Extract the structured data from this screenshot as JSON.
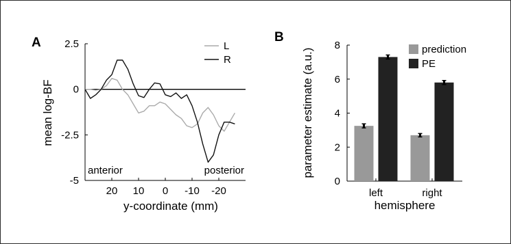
{
  "chart_data": [
    {
      "panel": "A",
      "type": "line",
      "xlabel": "y-coordinate (mm)",
      "ylabel": "mean log-BF",
      "xlim": [
        30,
        -30
      ],
      "ylim": [
        -5,
        2.5
      ],
      "x_ticks": [
        "20",
        "10",
        "0",
        "-10",
        "-20"
      ],
      "y_ticks": [
        "2.5",
        "0",
        "-2.5",
        "-5"
      ],
      "legend_position": "top-right",
      "colors": {
        "L": "#aaaaaa",
        "R": "#111111"
      },
      "annotations": {
        "left": "anterior",
        "right": "posterior"
      },
      "x": [
        30,
        28,
        26,
        24,
        22,
        20,
        18,
        16,
        14,
        12,
        10,
        8,
        6,
        4,
        2,
        0,
        -2,
        -4,
        -6,
        -8,
        -10,
        -12,
        -14,
        -16,
        -18,
        -20,
        -22,
        -24,
        -26
      ],
      "series": [
        {
          "name": "L",
          "values": [
            0,
            0,
            -0.05,
            0,
            0.2,
            0.6,
            0.5,
            0,
            -0.3,
            -0.8,
            -1.3,
            -1.2,
            -0.9,
            -0.9,
            -0.7,
            -0.8,
            -1.1,
            -1.4,
            -1.6,
            -2.0,
            -2.1,
            -1.9,
            -1.3,
            -1.0,
            -1.4,
            -2.0,
            -2.3,
            -1.8,
            -1.3
          ]
        },
        {
          "name": "R",
          "values": [
            0,
            -0.5,
            -0.3,
            0,
            0.5,
            0.8,
            1.6,
            1.6,
            1.1,
            0.3,
            -0.35,
            -0.45,
            0,
            0.35,
            0.3,
            -0.3,
            -0.4,
            -0.2,
            -0.5,
            -0.3,
            -0.9,
            -1.8,
            -3.0,
            -4.0,
            -3.6,
            -2.5,
            -1.8,
            -1.8,
            -1.9
          ]
        }
      ]
    },
    {
      "panel": "B",
      "type": "bar",
      "xlabel": "hemisphere",
      "ylabel": "parameter estimate (a.u.)",
      "categories": [
        "left",
        "right"
      ],
      "ylim": [
        0,
        8
      ],
      "y_ticks": [
        "0",
        "2",
        "4",
        "6",
        "8"
      ],
      "legend_position": "top-right",
      "series": [
        {
          "name": "prediction",
          "color": "#999999",
          "values": [
            3.25,
            2.7
          ],
          "errors": [
            0.12,
            0.1
          ]
        },
        {
          "name": "PE",
          "color": "#222222",
          "values": [
            7.3,
            5.8
          ],
          "errors": [
            0.12,
            0.12
          ]
        }
      ]
    }
  ]
}
